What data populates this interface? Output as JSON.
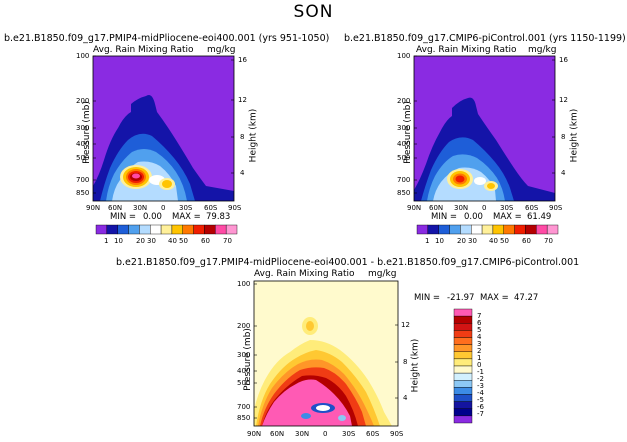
{
  "figure": {
    "title": "SON"
  },
  "chart_data": [
    {
      "type": "heatmap",
      "title": "b.e21.B1850.f09_g17.PMIP4-midPliocene-eoi400.001 (yrs 951-1050)",
      "subtitle": "Avg. Rain Mixing Ratio",
      "units": "mg/kg",
      "xlabel": "",
      "ylabel": "Pressure (mb)",
      "ylabel_right": "Height (km)",
      "x_ticks": [
        "90N",
        "60N",
        "30N",
        "0",
        "30S",
        "60S",
        "90S"
      ],
      "y_ticks": [
        "100",
        "200",
        "300",
        "400",
        "500",
        "700",
        "850"
      ],
      "y_ticks_right": [
        "16",
        "12",
        "8",
        "4"
      ],
      "min_label": "MIN =",
      "min_value": "0.00",
      "max_label": "MAX =",
      "max_value": "79.83",
      "colorbar_labels": [
        "1",
        "10",
        "20",
        "30",
        "40",
        "50",
        "60",
        "70"
      ],
      "colorbar_colors": [
        "#8a2be2",
        "#1414a8",
        "#1e5ed8",
        "#50a0ee",
        "#b4dcff",
        "#ffffff",
        "#fff09a",
        "#ffc400",
        "#ff7800",
        "#f01e00",
        "#b40000",
        "#ff4aa5",
        "#ff96d2"
      ],
      "features": [
        "rain maximum ~30N near 700 mb",
        "secondary maximum ~20S near 700 mb"
      ]
    },
    {
      "type": "heatmap",
      "title": "b.e21.B1850.f09_g17.CMIP6-piControl.001 (yrs 1150-1199)",
      "subtitle": "Avg. Rain Mixing Ratio",
      "units": "mg/kg",
      "xlabel": "",
      "ylabel": "Pressure (mb)",
      "ylabel_right": "Height (km)",
      "x_ticks": [
        "90N",
        "60N",
        "30N",
        "0",
        "30S",
        "60S",
        "90S"
      ],
      "y_ticks": [
        "100",
        "200",
        "300",
        "400",
        "500",
        "700",
        "850"
      ],
      "y_ticks_right": [
        "16",
        "12",
        "8",
        "4"
      ],
      "min_label": "MIN =",
      "min_value": "0.00",
      "max_label": "MAX =",
      "max_value": "61.49",
      "colorbar_labels": [
        "1",
        "10",
        "20",
        "30",
        "40",
        "50",
        "60",
        "70"
      ],
      "colorbar_colors": [
        "#8a2be2",
        "#1414a8",
        "#1e5ed8",
        "#50a0ee",
        "#b4dcff",
        "#ffffff",
        "#fff09a",
        "#ffc400",
        "#ff7800",
        "#f01e00",
        "#b40000",
        "#ff4aa5",
        "#ff96d2"
      ]
    },
    {
      "type": "heatmap",
      "title": "b.e21.B1850.f09_g17.PMIP4-midPliocene-eoi400.001 - b.e21.B1850.f09_g17.CMIP6-piControl.001",
      "subtitle": "Avg. Rain Mixing Ratio",
      "units": "mg/kg",
      "xlabel": "",
      "ylabel": "Pressure (mb)",
      "ylabel_right": "Height (km)",
      "x_ticks": [
        "90N",
        "60N",
        "30N",
        "0",
        "30S",
        "60S",
        "90S"
      ],
      "y_ticks": [
        "100",
        "200",
        "300",
        "400",
        "500",
        "700",
        "850"
      ],
      "y_ticks_right": [
        "12",
        "8",
        "4"
      ],
      "min_label": "MIN =",
      "min_value": "-21.97",
      "max_label": "MAX =",
      "max_value": "47.27",
      "colorbar_labels": [
        "7",
        "6",
        "5",
        "4",
        "3",
        "2",
        "1",
        "0",
        "-1",
        "-2",
        "-3",
        "-4",
        "-5",
        "-6",
        "-7"
      ],
      "colorbar_colors": [
        "#ff5ab4",
        "#b40000",
        "#d21414",
        "#f03c14",
        "#ff6e1e",
        "#ff9628",
        "#ffc832",
        "#ffec7a",
        "#fffacd",
        "#d2f0ff",
        "#8cc8f5",
        "#3c8ce6",
        "#1e50c8",
        "#1414a0",
        "#00008c",
        "#8a2be2"
      ]
    }
  ]
}
